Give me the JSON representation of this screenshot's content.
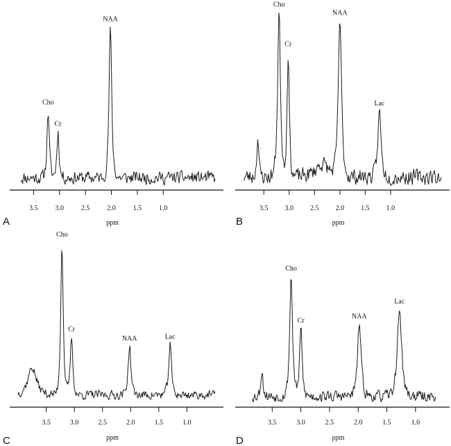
{
  "chart_data": [
    {
      "type": "line",
      "panel": "A",
      "xlabel": "ppm",
      "x_reversed": true,
      "xlim": [
        3.8,
        0.0
      ],
      "ticks": [
        "3.5",
        "3.0",
        "2.5",
        "2.0",
        "1.5",
        "1.0"
      ],
      "tick_values": [
        3.5,
        3.0,
        2.5,
        2.0,
        1.5,
        1.0
      ],
      "x_range": [
        3.75,
        0.0
      ],
      "peaks": [
        {
          "label": "Cho",
          "ppm": 3.22,
          "height": 0.44,
          "width": 0.035
        },
        {
          "label": "Cr",
          "ppm": 3.03,
          "height": 0.3,
          "width": 0.035
        },
        {
          "label": "NAA",
          "ppm": 2.02,
          "height": 0.98,
          "width": 0.04
        }
      ],
      "noise": 0.035,
      "seed": 11
    },
    {
      "type": "line",
      "panel": "B",
      "xlabel": "ppm",
      "x_reversed": true,
      "xlim": [
        3.9,
        0.0
      ],
      "ticks": [
        "3.5",
        "3.0",
        "2.5",
        "2.0",
        "1.5",
        "1.0"
      ],
      "tick_values": [
        3.5,
        3.0,
        2.5,
        2.0,
        1.5,
        1.0
      ],
      "x_range": [
        3.9,
        0.0
      ],
      "peaks": [
        {
          "label": "",
          "ppm": 3.62,
          "height": 0.25,
          "width": 0.03
        },
        {
          "label": "Cho",
          "ppm": 3.2,
          "height": 1.0,
          "width": 0.045
        },
        {
          "label": "Cr",
          "ppm": 3.02,
          "height": 0.76,
          "width": 0.035
        },
        {
          "label": "NAA",
          "ppm": 2.0,
          "height": 0.95,
          "width": 0.05
        },
        {
          "label": "Lac",
          "ppm": 1.22,
          "height": 0.4,
          "width": 0.05
        },
        {
          "label": "",
          "ppm": 2.35,
          "height": 0.08,
          "width": 0.2
        }
      ],
      "noise": 0.04,
      "seed": 23
    },
    {
      "type": "line",
      "panel": "C",
      "xlabel": "ppm",
      "x_reversed": true,
      "xlim": [
        4.0,
        0.5
      ],
      "ticks": [
        "3.5",
        "3.0",
        "2.5",
        "2.0",
        "1.5",
        "1.0"
      ],
      "tick_values": [
        3.5,
        3.0,
        2.5,
        2.0,
        1.5,
        1.0
      ],
      "x_range": [
        4.0,
        0.5
      ],
      "peaks": [
        {
          "label": "Cho",
          "ppm": 3.22,
          "height": 1.0,
          "width": 0.035
        },
        {
          "label": "Cr",
          "ppm": 3.05,
          "height": 0.38,
          "width": 0.035
        },
        {
          "label": "NAA",
          "ppm": 2.02,
          "height": 0.32,
          "width": 0.04
        },
        {
          "label": "Lac",
          "ppm": 1.3,
          "height": 0.33,
          "width": 0.04
        },
        {
          "label": "",
          "ppm": 3.75,
          "height": 0.18,
          "width": 0.12
        }
      ],
      "noise": 0.025,
      "seed": 37
    },
    {
      "type": "line",
      "panel": "D",
      "xlabel": "ppm",
      "x_reversed": true,
      "xlim": [
        4.0,
        0.55
      ],
      "ticks": [
        "3.5",
        "3.0",
        "2.5",
        "2.0",
        "1.5",
        "1.0"
      ],
      "tick_values": [
        3.5,
        3.0,
        2.5,
        2.0,
        1.5,
        1.0
      ],
      "x_range": [
        3.85,
        0.65
      ],
      "peaks": [
        {
          "label": "",
          "ppm": 3.68,
          "height": 0.2,
          "width": 0.03
        },
        {
          "label": "Cho",
          "ppm": 3.17,
          "height": 0.88,
          "width": 0.04
        },
        {
          "label": "Cr",
          "ppm": 3.0,
          "height": 0.5,
          "width": 0.035
        },
        {
          "label": "NAA",
          "ppm": 1.98,
          "height": 0.53,
          "width": 0.05
        },
        {
          "label": "Lac",
          "ppm": 1.28,
          "height": 0.64,
          "width": 0.06
        }
      ],
      "noise": 0.035,
      "seed": 53
    }
  ]
}
